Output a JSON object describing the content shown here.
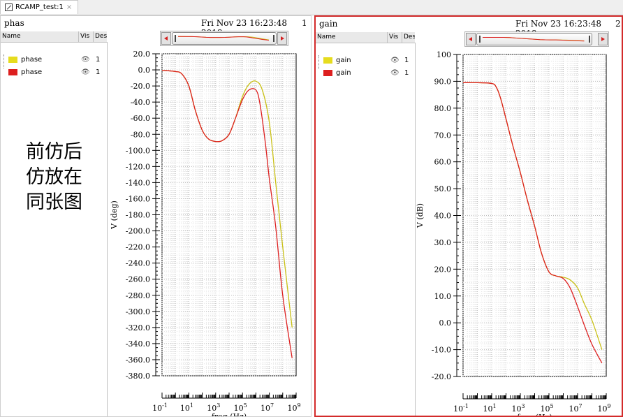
{
  "tab": {
    "title": "RCAMP_test:1",
    "close": "×"
  },
  "note": {
    "lines": [
      "前仿后",
      "仿放在",
      "同张图"
    ]
  },
  "legend_headers": {
    "name": "Name",
    "vis": "Vis",
    "des": "Des"
  },
  "panels": [
    {
      "title": "phas",
      "date": "Fri Nov 23 16:23:48 2018",
      "index": "1",
      "legend": [
        {
          "name": "phase",
          "color": "#e6dc1e",
          "vis": "1"
        },
        {
          "name": "phase",
          "color": "#dd1f1f",
          "vis": "1"
        }
      ]
    },
    {
      "title": "gain",
      "date": "Fri Nov 23 16:23:48 2018",
      "index": "2",
      "legend": [
        {
          "name": "gain",
          "color": "#e6dc1e",
          "vis": "1"
        },
        {
          "name": "gain",
          "color": "#dd1f1f",
          "vis": "1"
        }
      ]
    }
  ],
  "chart_data": [
    {
      "type": "line",
      "xscale": "log",
      "xlabel": "freq (Hz)",
      "ylabel": "V (deg)",
      "xlim": [
        0.1,
        1000000000
      ],
      "ylim": [
        -380,
        20
      ],
      "yticks": [
        "20.0",
        "0.0",
        "-20.0",
        "-40.0",
        "-60.0",
        "-80.0",
        "-100.0",
        "-120.0",
        "-140.0",
        "-160.0",
        "-180.0",
        "-200.0",
        "-220.0",
        "-240.0",
        "-260.0",
        "-280.0",
        "-300.0",
        "-320.0",
        "-340.0",
        "-360.0",
        "-380.0"
      ],
      "xticks": [
        {
          "base": "10",
          "exp": "-1"
        },
        {
          "base": "10",
          "exp": "1"
        },
        {
          "base": "10",
          "exp": "3"
        },
        {
          "base": "10",
          "exp": "5"
        },
        {
          "base": "10",
          "exp": "7"
        },
        {
          "base": "10",
          "exp": "9"
        }
      ],
      "grid": true,
      "series": [
        {
          "color": "#c9c015",
          "x": [
            0.1,
            1,
            3,
            10,
            30,
            100,
            300,
            1000,
            3000,
            10000,
            30000,
            100000,
            300000,
            1000000,
            3000000,
            10000000,
            30000000,
            100000000,
            500000000
          ],
          "y": [
            -0.5,
            -2,
            -5,
            -20,
            -50,
            -75,
            -86,
            -89,
            -88,
            -80,
            -60,
            -33,
            -18,
            -14,
            -25,
            -65,
            -140,
            -220,
            -320
          ]
        },
        {
          "color": "#dd1f1f",
          "x": [
            0.1,
            1,
            3,
            10,
            30,
            100,
            300,
            1000,
            3000,
            10000,
            30000,
            100000,
            300000,
            1000000,
            2000000,
            5000000,
            10000000,
            30000000,
            100000000,
            500000000
          ],
          "y": [
            -0.5,
            -2,
            -5,
            -20,
            -50,
            -75,
            -86,
            -89,
            -88,
            -80,
            -60,
            -37,
            -25,
            -25,
            -42,
            -90,
            -135,
            -195,
            -280,
            -358
          ]
        }
      ]
    },
    {
      "type": "line",
      "xscale": "log",
      "xlabel": "freq (Hz)",
      "ylabel": "V (dB)",
      "xlim": [
        0.1,
        1000000000
      ],
      "ylim": [
        -20,
        100
      ],
      "yticks": [
        "100",
        "90.0",
        "80.0",
        "70.0",
        "60.0",
        "50.0",
        "40.0",
        "30.0",
        "20.0",
        "10.0",
        "0.0",
        "-10.0",
        "-20.0"
      ],
      "xticks": [
        {
          "base": "10",
          "exp": "-1"
        },
        {
          "base": "10",
          "exp": "1"
        },
        {
          "base": "10",
          "exp": "3"
        },
        {
          "base": "10",
          "exp": "5"
        },
        {
          "base": "10",
          "exp": "7"
        },
        {
          "base": "10",
          "exp": "9"
        }
      ],
      "grid": true,
      "series": [
        {
          "color": "#c9c015",
          "x": [
            0.1,
            1,
            10,
            20,
            40,
            100,
            300,
            1000,
            3000,
            10000,
            30000,
            100000,
            300000,
            1000000,
            3000000,
            10000000,
            30000000,
            100000000,
            500000000
          ],
          "y": [
            89.5,
            89.5,
            89.2,
            88,
            84,
            76,
            66,
            56,
            46,
            36,
            26,
            19,
            17.5,
            17,
            16,
            13,
            7,
            1,
            -10
          ]
        },
        {
          "color": "#dd1f1f",
          "x": [
            0.1,
            1,
            10,
            20,
            40,
            100,
            300,
            1000,
            3000,
            10000,
            30000,
            100000,
            300000,
            1000000,
            3000000,
            10000000,
            30000000,
            100000000,
            500000000
          ],
          "y": [
            89.5,
            89.5,
            89.2,
            88,
            84,
            76,
            66,
            56,
            46,
            36,
            26,
            19,
            17.5,
            16.5,
            13,
            6,
            -1,
            -8,
            -15
          ]
        }
      ]
    }
  ]
}
